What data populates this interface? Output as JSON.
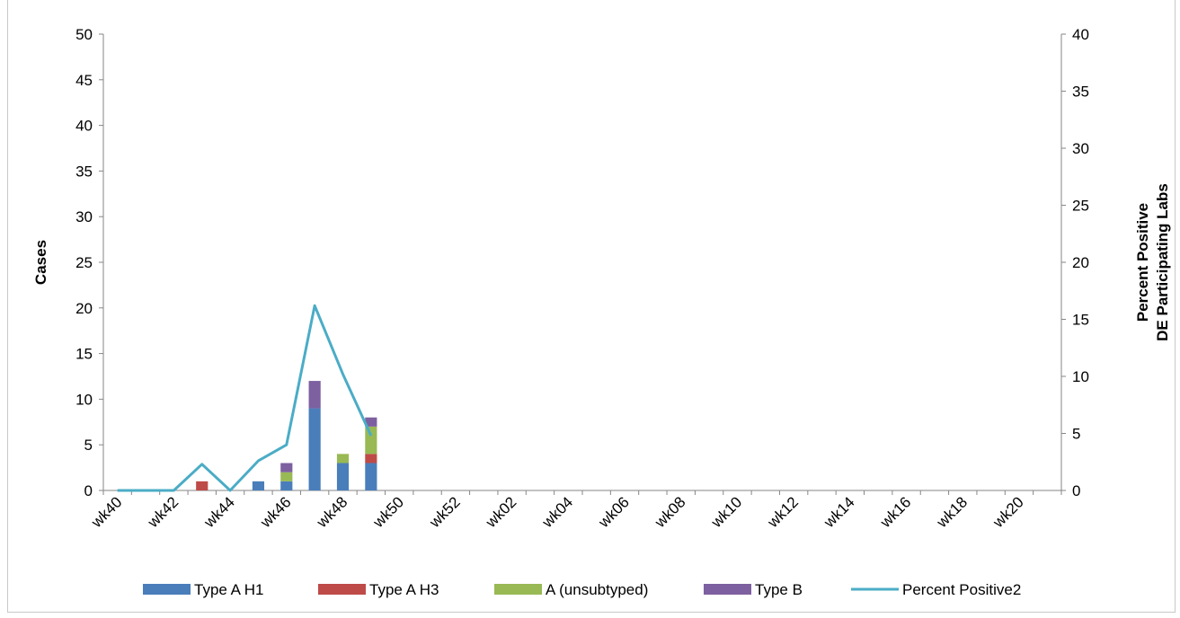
{
  "chart_data": {
    "type": "bar",
    "stacked": true,
    "title": "",
    "categories": [
      "wk40",
      "wk41",
      "wk42",
      "wk43",
      "wk44",
      "wk45",
      "wk46",
      "wk47",
      "wk48",
      "wk49",
      "wk50",
      "wk51",
      "wk52",
      "wk01",
      "wk02",
      "wk03",
      "wk04",
      "wk05",
      "wk06",
      "wk07",
      "wk08",
      "wk09",
      "wk10",
      "wk11",
      "wk12",
      "wk13",
      "wk14",
      "wk15",
      "wk16",
      "wk17",
      "wk18",
      "wk19",
      "wk20",
      "wk21"
    ],
    "x_tick_labels": [
      "wk40",
      "wk42",
      "wk44",
      "wk46",
      "wk48",
      "wk50",
      "wk52",
      "wk02",
      "wk04",
      "wk06",
      "wk08",
      "wk10",
      "wk12",
      "wk14",
      "wk16",
      "wk18",
      "wk20"
    ],
    "ylabel": "Cases",
    "ylim": [
      0,
      50
    ],
    "yticks": [
      "0",
      "5",
      "10",
      "15",
      "20",
      "25",
      "30",
      "35",
      "40",
      "45",
      "50"
    ],
    "y2label_line1": "Percent Positive",
    "y2label_line2": "DE Participating Labs",
    "y2lim": [
      0,
      40
    ],
    "y2ticks": [
      "0",
      "5",
      "10",
      "15",
      "20",
      "25",
      "30",
      "35",
      "40"
    ],
    "grid": false,
    "legend_position": "bottom",
    "series": [
      {
        "name": "Type A H1",
        "color": "#4a7ebb",
        "values": [
          0,
          0,
          0,
          0,
          0,
          1,
          1,
          9,
          3,
          3,
          0,
          0,
          0,
          0,
          0,
          0,
          0,
          0,
          0,
          0,
          0,
          0,
          0,
          0,
          0,
          0,
          0,
          0,
          0,
          0,
          0,
          0,
          0,
          0
        ]
      },
      {
        "name": "Type A H3",
        "color": "#be4b48",
        "values": [
          0,
          0,
          0,
          1,
          0,
          0,
          0,
          0,
          0,
          1,
          0,
          0,
          0,
          0,
          0,
          0,
          0,
          0,
          0,
          0,
          0,
          0,
          0,
          0,
          0,
          0,
          0,
          0,
          0,
          0,
          0,
          0,
          0,
          0
        ]
      },
      {
        "name": "A (unsubtyped)",
        "color": "#98b954",
        "values": [
          0,
          0,
          0,
          0,
          0,
          0,
          1,
          0,
          1,
          3,
          0,
          0,
          0,
          0,
          0,
          0,
          0,
          0,
          0,
          0,
          0,
          0,
          0,
          0,
          0,
          0,
          0,
          0,
          0,
          0,
          0,
          0,
          0,
          0
        ]
      },
      {
        "name": "Type B",
        "color": "#7d60a0",
        "values": [
          0,
          0,
          0,
          0,
          0,
          0,
          1,
          3,
          0,
          1,
          0,
          0,
          0,
          0,
          0,
          0,
          0,
          0,
          0,
          0,
          0,
          0,
          0,
          0,
          0,
          0,
          0,
          0,
          0,
          0,
          0,
          0,
          0,
          0
        ]
      }
    ],
    "line_series": {
      "name": "Percent Positive2",
      "color": "#4bacc6",
      "axis": "right",
      "values": [
        0,
        0,
        0,
        2.3,
        0,
        2.6,
        4.0,
        16.2,
        10.2,
        4.8
      ]
    }
  }
}
